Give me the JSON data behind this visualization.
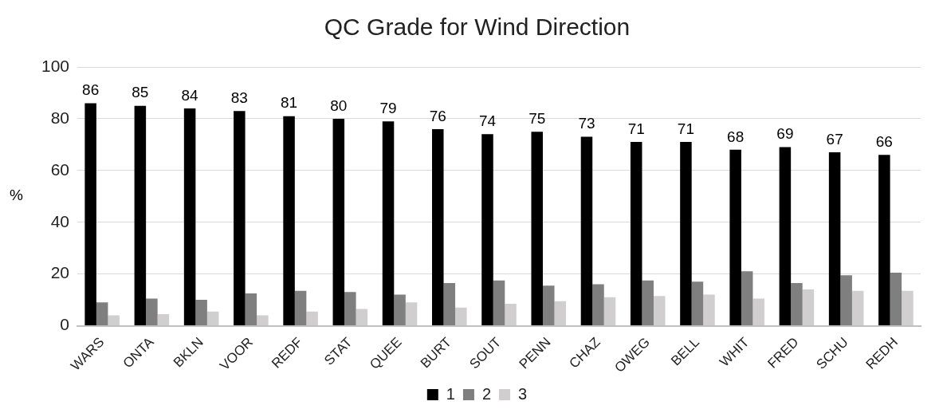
{
  "chart_data": {
    "type": "bar",
    "title": "QC Grade for Wind Direction",
    "ylabel": "%",
    "categories": [
      "WARS",
      "ONTA",
      "BKLN",
      "VOOR",
      "REDF",
      "STAT",
      "QUEE",
      "BURT",
      "SOUT",
      "PENN",
      "CHAZ",
      "OWEG",
      "BELL",
      "WHIT",
      "FRED",
      "SCHU",
      "REDH"
    ],
    "series": [
      {
        "name": "1",
        "color": "#000000",
        "values": [
          86,
          85,
          84,
          83,
          81,
          80,
          79,
          76,
          74,
          75,
          73,
          71,
          71,
          68,
          69,
          67,
          66
        ],
        "value_labels": [
          "86",
          "85",
          "84",
          "83",
          "81",
          "80",
          "79",
          "76",
          "74",
          "75",
          "73",
          "71",
          "71",
          "68",
          "69",
          "67",
          "66"
        ]
      },
      {
        "name": "2",
        "color": "#7f7f7f",
        "values": [
          9,
          10.5,
          10,
          12.5,
          13.5,
          13,
          12,
          16.5,
          17.5,
          15.5,
          16,
          17.5,
          17,
          21,
          16.5,
          19.5,
          20.5
        ]
      },
      {
        "name": "3",
        "color": "#d0cece",
        "values": [
          4,
          4.5,
          5.5,
          4,
          5.5,
          6.5,
          9,
          7,
          8.5,
          9.5,
          11,
          11.5,
          12,
          10.5,
          14,
          13.5,
          13.5
        ]
      }
    ],
    "ylim": [
      0,
      100
    ],
    "yticks": [
      0,
      20,
      40,
      60,
      80,
      100
    ],
    "grid": "y",
    "legend": "bottom"
  }
}
